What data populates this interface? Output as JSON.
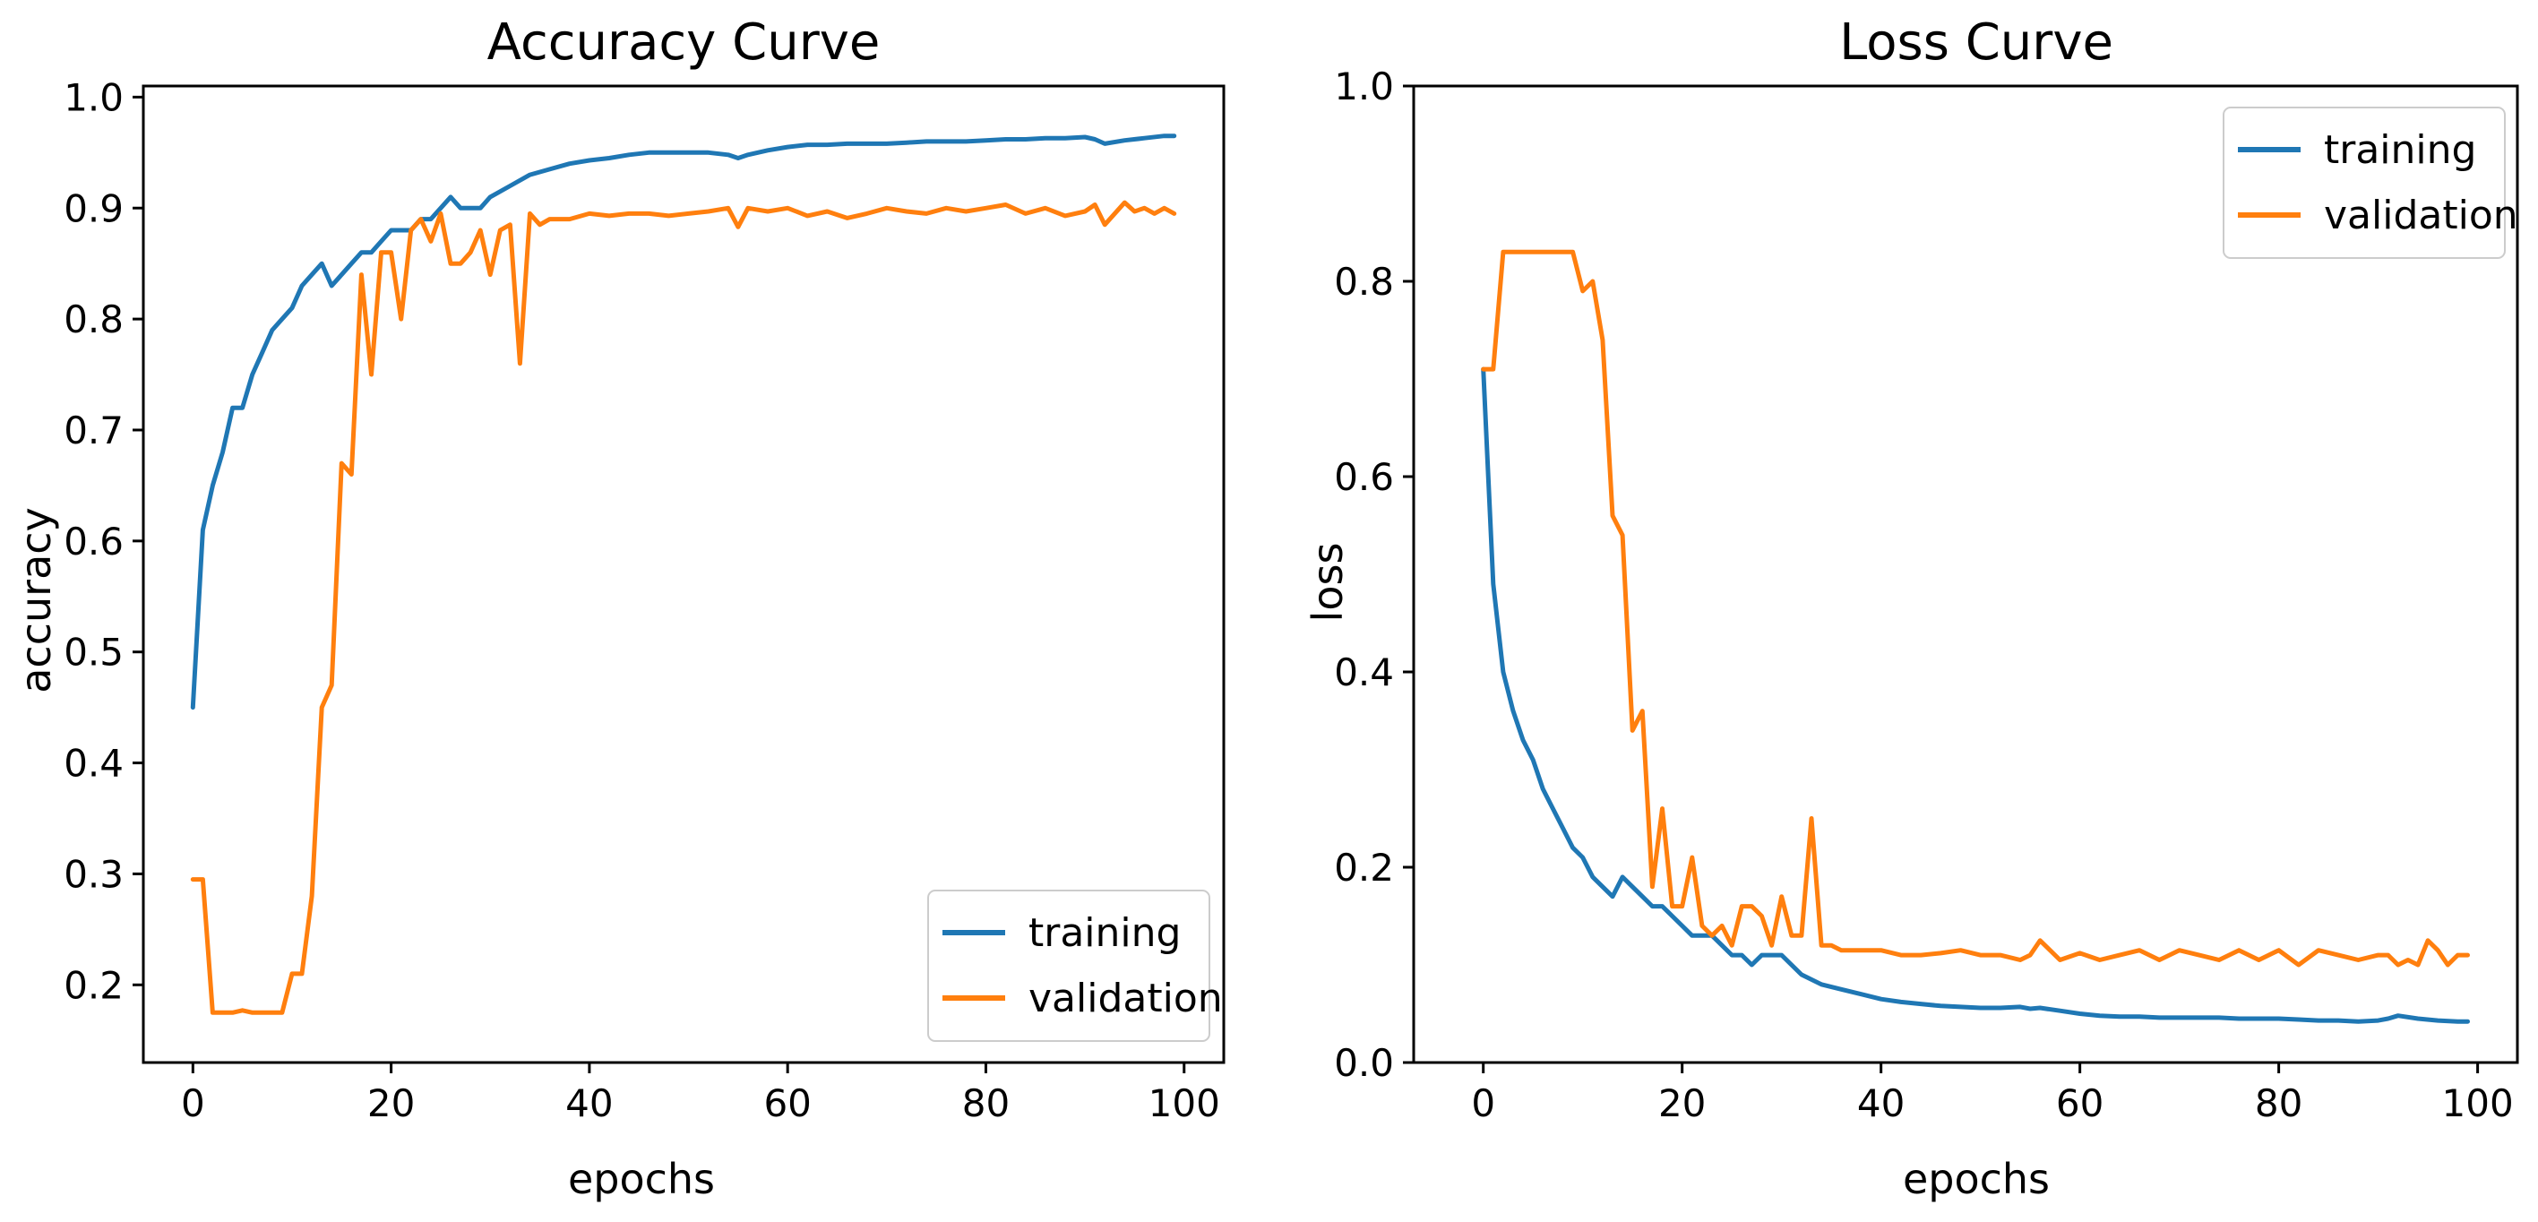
{
  "chart_data": [
    {
      "type": "line",
      "title": "Accuracy Curve",
      "xlabel": "epochs",
      "ylabel": "accuracy",
      "xlim": [
        -5,
        104
      ],
      "ylim": [
        0.13,
        1.01
      ],
      "xticks": [
        0,
        20,
        40,
        60,
        80,
        100
      ],
      "yticks": [
        0.2,
        0.3,
        0.4,
        0.5,
        0.6,
        0.7,
        0.8,
        0.9,
        1.0
      ],
      "xtick_labels": [
        "0",
        "20",
        "40",
        "60",
        "80",
        "100"
      ],
      "ytick_labels": [
        "0.2",
        "0.3",
        "0.4",
        "0.5",
        "0.6",
        "0.7",
        "0.8",
        "0.9",
        "1.0"
      ],
      "legend_position": "lower-right",
      "grid": false,
      "series": [
        {
          "name": "training",
          "color": "#1f77b4",
          "x": [
            0,
            1,
            2,
            3,
            4,
            5,
            6,
            7,
            8,
            9,
            10,
            11,
            12,
            13,
            14,
            15,
            16,
            17,
            18,
            19,
            20,
            21,
            22,
            23,
            24,
            25,
            26,
            27,
            28,
            29,
            30,
            32,
            34,
            36,
            38,
            40,
            42,
            44,
            46,
            48,
            50,
            52,
            54,
            55,
            56,
            58,
            60,
            62,
            64,
            66,
            68,
            70,
            72,
            74,
            76,
            78,
            80,
            82,
            84,
            86,
            88,
            90,
            91,
            92,
            94,
            96,
            98,
            99
          ],
          "y": [
            0.45,
            0.61,
            0.65,
            0.68,
            0.72,
            0.72,
            0.75,
            0.77,
            0.79,
            0.8,
            0.81,
            0.83,
            0.84,
            0.85,
            0.83,
            0.84,
            0.85,
            0.86,
            0.86,
            0.87,
            0.88,
            0.88,
            0.88,
            0.89,
            0.89,
            0.9,
            0.91,
            0.9,
            0.9,
            0.9,
            0.91,
            0.92,
            0.93,
            0.935,
            0.94,
            0.943,
            0.945,
            0.948,
            0.95,
            0.95,
            0.95,
            0.95,
            0.948,
            0.945,
            0.948,
            0.952,
            0.955,
            0.957,
            0.957,
            0.958,
            0.958,
            0.958,
            0.959,
            0.96,
            0.96,
            0.96,
            0.961,
            0.962,
            0.962,
            0.963,
            0.963,
            0.964,
            0.962,
            0.958,
            0.961,
            0.963,
            0.965,
            0.965
          ]
        },
        {
          "name": "validation",
          "color": "#ff7f0e",
          "x": [
            0,
            1,
            2,
            3,
            4,
            5,
            6,
            7,
            8,
            9,
            10,
            11,
            12,
            13,
            14,
            15,
            16,
            17,
            18,
            19,
            20,
            21,
            22,
            23,
            24,
            25,
            26,
            27,
            28,
            29,
            30,
            31,
            32,
            33,
            34,
            35,
            36,
            38,
            40,
            42,
            44,
            46,
            48,
            50,
            52,
            54,
            55,
            56,
            58,
            60,
            62,
            64,
            66,
            68,
            70,
            72,
            74,
            76,
            78,
            80,
            82,
            84,
            86,
            88,
            90,
            91,
            92,
            93,
            94,
            95,
            96,
            97,
            98,
            99
          ],
          "y": [
            0.295,
            0.295,
            0.175,
            0.175,
            0.175,
            0.177,
            0.175,
            0.175,
            0.175,
            0.175,
            0.21,
            0.21,
            0.28,
            0.45,
            0.47,
            0.67,
            0.66,
            0.84,
            0.75,
            0.86,
            0.86,
            0.8,
            0.88,
            0.89,
            0.87,
            0.895,
            0.85,
            0.85,
            0.86,
            0.88,
            0.84,
            0.88,
            0.885,
            0.76,
            0.895,
            0.885,
            0.89,
            0.89,
            0.895,
            0.893,
            0.895,
            0.895,
            0.893,
            0.895,
            0.897,
            0.9,
            0.883,
            0.9,
            0.897,
            0.9,
            0.893,
            0.897,
            0.891,
            0.895,
            0.9,
            0.897,
            0.895,
            0.9,
            0.897,
            0.9,
            0.903,
            0.895,
            0.9,
            0.893,
            0.897,
            0.903,
            0.885,
            0.895,
            0.905,
            0.897,
            0.9,
            0.895,
            0.9,
            0.895
          ]
        }
      ]
    },
    {
      "type": "line",
      "title": "Loss Curve",
      "xlabel": "epochs",
      "ylabel": "loss",
      "xlim": [
        -7,
        104
      ],
      "ylim": [
        0.0,
        1.0
      ],
      "xticks": [
        0,
        20,
        40,
        60,
        80,
        100
      ],
      "yticks": [
        0.0,
        0.2,
        0.4,
        0.6,
        0.8,
        1.0
      ],
      "xtick_labels": [
        "0",
        "20",
        "40",
        "60",
        "80",
        "100"
      ],
      "ytick_labels": [
        "0.0",
        "0.2",
        "0.4",
        "0.6",
        "0.8",
        "1.0"
      ],
      "legend_position": "upper-right",
      "grid": false,
      "series": [
        {
          "name": "training",
          "color": "#1f77b4",
          "x": [
            0,
            1,
            2,
            3,
            4,
            5,
            6,
            7,
            8,
            9,
            10,
            11,
            12,
            13,
            14,
            15,
            16,
            17,
            18,
            19,
            20,
            21,
            22,
            23,
            24,
            25,
            26,
            27,
            28,
            29,
            30,
            31,
            32,
            34,
            36,
            38,
            40,
            42,
            44,
            46,
            48,
            50,
            52,
            54,
            55,
            56,
            58,
            60,
            62,
            64,
            66,
            68,
            70,
            72,
            74,
            76,
            78,
            80,
            82,
            84,
            86,
            88,
            90,
            91,
            92,
            94,
            96,
            98,
            99
          ],
          "y": [
            0.71,
            0.49,
            0.4,
            0.36,
            0.33,
            0.31,
            0.28,
            0.26,
            0.24,
            0.22,
            0.21,
            0.19,
            0.18,
            0.17,
            0.19,
            0.18,
            0.17,
            0.16,
            0.16,
            0.15,
            0.14,
            0.13,
            0.13,
            0.13,
            0.12,
            0.11,
            0.11,
            0.1,
            0.11,
            0.11,
            0.11,
            0.1,
            0.09,
            0.08,
            0.075,
            0.07,
            0.065,
            0.062,
            0.06,
            0.058,
            0.057,
            0.056,
            0.056,
            0.057,
            0.055,
            0.056,
            0.053,
            0.05,
            0.048,
            0.047,
            0.047,
            0.046,
            0.046,
            0.046,
            0.046,
            0.045,
            0.045,
            0.045,
            0.044,
            0.043,
            0.043,
            0.042,
            0.043,
            0.045,
            0.048,
            0.045,
            0.043,
            0.042,
            0.042
          ]
        },
        {
          "name": "validation",
          "color": "#ff7f0e",
          "x": [
            0,
            1,
            2,
            3,
            4,
            5,
            6,
            7,
            8,
            9,
            10,
            11,
            12,
            13,
            14,
            15,
            16,
            17,
            18,
            19,
            20,
            21,
            22,
            23,
            24,
            25,
            26,
            27,
            28,
            29,
            30,
            31,
            32,
            33,
            34,
            35,
            36,
            38,
            40,
            42,
            44,
            46,
            48,
            50,
            52,
            54,
            55,
            56,
            58,
            60,
            62,
            64,
            66,
            68,
            70,
            72,
            74,
            76,
            78,
            80,
            82,
            84,
            86,
            88,
            90,
            91,
            92,
            93,
            94,
            95,
            96,
            97,
            98,
            99
          ],
          "y": [
            0.71,
            0.71,
            0.83,
            0.83,
            0.83,
            0.83,
            0.83,
            0.83,
            0.83,
            0.83,
            0.79,
            0.8,
            0.74,
            0.56,
            0.54,
            0.34,
            0.36,
            0.18,
            0.26,
            0.16,
            0.16,
            0.21,
            0.14,
            0.13,
            0.14,
            0.12,
            0.16,
            0.16,
            0.15,
            0.12,
            0.17,
            0.13,
            0.13,
            0.25,
            0.12,
            0.12,
            0.115,
            0.115,
            0.115,
            0.11,
            0.11,
            0.112,
            0.115,
            0.11,
            0.11,
            0.105,
            0.11,
            0.125,
            0.105,
            0.112,
            0.105,
            0.11,
            0.115,
            0.105,
            0.115,
            0.11,
            0.105,
            0.115,
            0.105,
            0.115,
            0.1,
            0.115,
            0.11,
            0.105,
            0.11,
            0.11,
            0.1,
            0.105,
            0.1,
            0.125,
            0.115,
            0.1,
            0.11,
            0.11
          ]
        }
      ]
    }
  ]
}
